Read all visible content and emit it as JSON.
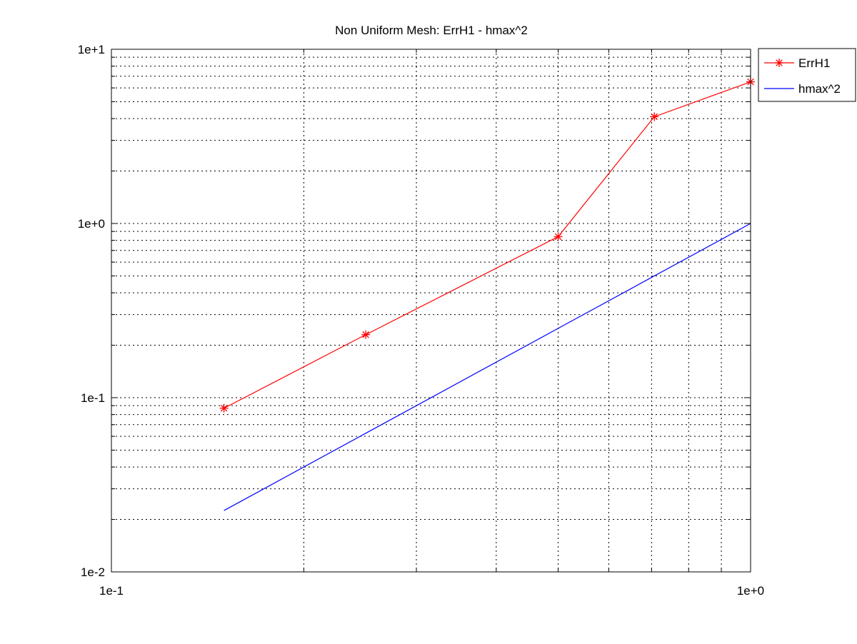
{
  "chart_data": {
    "type": "line",
    "title": "Non Uniform Mesh: ErrH1 - hmax^2",
    "xlabel": "",
    "ylabel": "",
    "x_scale": "log",
    "y_scale": "log",
    "xlim": [
      0.1,
      1.0
    ],
    "ylim": [
      0.01,
      10.0
    ],
    "x_tick_labels": [
      "1e-1",
      "1e+0"
    ],
    "y_tick_labels": [
      "1e-2",
      "1e-1",
      "1e+0",
      "1e+1"
    ],
    "grid": true,
    "legend_position": "top-right",
    "series": [
      {
        "name": "ErrH1",
        "color": "#ff0000",
        "marker": "asterisk",
        "x": [
          0.15,
          0.25,
          0.5,
          0.707,
          1.0
        ],
        "y": [
          0.087,
          0.23,
          0.84,
          4.1,
          6.5
        ]
      },
      {
        "name": "hmax^2",
        "color": "#0000ff",
        "marker": "none",
        "x": [
          0.15,
          0.25,
          0.5,
          0.707,
          1.0
        ],
        "y": [
          0.0225,
          0.0625,
          0.25,
          0.5,
          1.0
        ]
      }
    ]
  }
}
